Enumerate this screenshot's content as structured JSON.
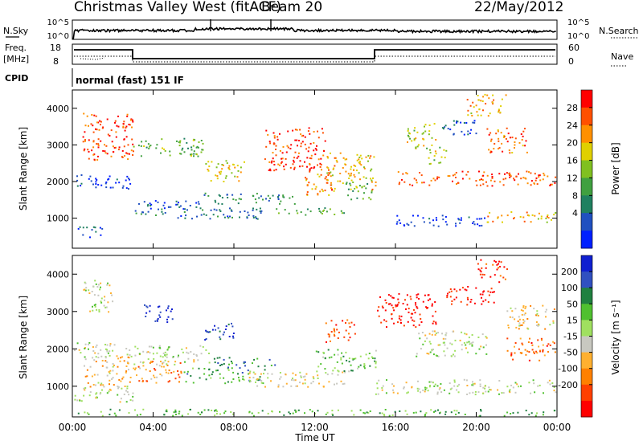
{
  "header": {
    "title": "Christmas Valley West (fitACF)",
    "beam": "Beam 20",
    "date": "22/May/2012"
  },
  "top_panels": {
    "nsky_label": "N.Sky",
    "nsky_ticks": [
      "10^5",
      "10^0"
    ],
    "nsearch_label": "N.Search",
    "nsearch_ticks": [
      "10^5",
      "10^0"
    ],
    "freq_label_1": "Freq.",
    "freq_label_2": "[MHz]",
    "freq_ticks": [
      "18",
      "8"
    ],
    "nave_label": "Nave",
    "nave_ticks": [
      "60",
      "0"
    ],
    "cpid_label": "CPID",
    "cpid_value": "normal (fast) 151 IF"
  },
  "chart_data": [
    {
      "type": "heatmap",
      "name": "power",
      "ylabel": "Slant Range [km]",
      "y_ticks": [
        "4000",
        "3000",
        "2000",
        "1000"
      ],
      "ylim": [
        180,
        4500
      ],
      "colorbar_label": "Power [dB]",
      "colorbar_ticks": [
        "28",
        "24",
        "20",
        "16",
        "12",
        "8",
        "4"
      ],
      "colorbar_colors": [
        "#ff0000",
        "#ff5000",
        "#ff9000",
        "#e0d000",
        "#80c020",
        "#40a040",
        "#208060",
        "#2050c0",
        "#0020ff"
      ],
      "features": [
        {
          "t0": 0.2,
          "t1": 3.0,
          "r0": 1800,
          "r1": 2200,
          "level": 0.88
        },
        {
          "t0": 0.2,
          "t1": 1.5,
          "r0": 500,
          "r1": 800,
          "level": 0.85
        },
        {
          "t0": 3.0,
          "t1": 6.5,
          "r0": 1100,
          "r1": 1500,
          "level": 0.78
        },
        {
          "t0": 5.0,
          "t1": 9.5,
          "r0": 1000,
          "r1": 1300,
          "level": 0.8
        },
        {
          "t0": 6.5,
          "t1": 11.0,
          "r0": 1400,
          "r1": 1700,
          "level": 0.7
        },
        {
          "t0": 10.0,
          "t1": 13.5,
          "r0": 1100,
          "r1": 1300,
          "level": 0.62
        },
        {
          "t0": 13.5,
          "t1": 14.8,
          "r0": 1500,
          "r1": 2000,
          "level": 0.6
        },
        {
          "t0": 16.0,
          "t1": 20.5,
          "r0": 800,
          "r1": 1100,
          "level": 0.9
        },
        {
          "t0": 20.5,
          "t1": 24.0,
          "r0": 900,
          "r1": 1200,
          "level": 0.35
        },
        {
          "t0": 16.0,
          "t1": 24.0,
          "r0": 1900,
          "r1": 2300,
          "level": 0.18
        },
        {
          "t0": 0.5,
          "t1": 3.0,
          "r0": 2600,
          "r1": 3900,
          "level": 0.15
        },
        {
          "t0": 3.0,
          "t1": 6.5,
          "r0": 2700,
          "r1": 3200,
          "level": 0.55
        },
        {
          "t0": 6.5,
          "t1": 8.5,
          "r0": 2000,
          "r1": 2600,
          "level": 0.4
        },
        {
          "t0": 9.5,
          "t1": 12.5,
          "r0": 2300,
          "r1": 3500,
          "level": 0.12
        },
        {
          "t0": 12.5,
          "t1": 15.0,
          "r0": 1800,
          "r1": 2800,
          "level": 0.35
        },
        {
          "t0": 16.5,
          "t1": 18.0,
          "r0": 2900,
          "r1": 3600,
          "level": 0.45
        },
        {
          "t0": 18.0,
          "t1": 20.0,
          "r0": 3300,
          "r1": 3700,
          "level": 0.82
        },
        {
          "t0": 20.5,
          "t1": 22.5,
          "r0": 2800,
          "r1": 3500,
          "level": 0.2
        },
        {
          "t0": 19.5,
          "t1": 21.5,
          "r0": 3800,
          "r1": 4400,
          "level": 0.3
        },
        {
          "t0": 17.5,
          "t1": 18.5,
          "r0": 2500,
          "r1": 3000,
          "level": 0.45
        },
        {
          "t0": 11.5,
          "t1": 13.0,
          "r0": 1600,
          "r1": 2400,
          "level": 0.25
        }
      ]
    },
    {
      "type": "heatmap",
      "name": "velocity",
      "ylabel": "Slant Range [km]",
      "y_ticks": [
        "4000",
        "3000",
        "2000",
        "1000"
      ],
      "ylim": [
        180,
        4500
      ],
      "colorbar_label": "Velocity [m s⁻¹]",
      "colorbar_ticks": [
        "200",
        "100",
        "50",
        "15",
        "-15",
        "-50",
        "-100",
        "-200"
      ],
      "colorbar_colors": [
        "#1020d0",
        "#3050c0",
        "#208040",
        "#50c030",
        "#a0e060",
        "#c8c8c0",
        "#ffb030",
        "#ff8000",
        "#ff4000",
        "#ff0000"
      ],
      "features": [
        {
          "t0": 0.0,
          "t1": 3.0,
          "r0": 1800,
          "r1": 2200,
          "level": 0.5
        },
        {
          "t0": 0.0,
          "t1": 3.0,
          "r0": 600,
          "r1": 1000,
          "level": 0.5
        },
        {
          "t0": 0.5,
          "t1": 3.0,
          "r0": 1000,
          "r1": 1800,
          "level": 0.62
        },
        {
          "t0": 3.0,
          "t1": 5.5,
          "r0": 1100,
          "r1": 1700,
          "level": 0.72
        },
        {
          "t0": 3.0,
          "t1": 7.0,
          "r0": 1600,
          "r1": 2100,
          "level": 0.5
        },
        {
          "t0": 5.5,
          "t1": 9.5,
          "r0": 1100,
          "r1": 1500,
          "level": 0.3
        },
        {
          "t0": 7.0,
          "t1": 10.0,
          "r0": 1500,
          "r1": 1800,
          "level": 0.25
        },
        {
          "t0": 8.5,
          "t1": 13.5,
          "r0": 1000,
          "r1": 1400,
          "level": 0.55
        },
        {
          "t0": 12.0,
          "t1": 15.0,
          "r0": 1400,
          "r1": 2000,
          "level": 0.38
        },
        {
          "t0": 15.0,
          "t1": 24.0,
          "r0": 800,
          "r1": 1200,
          "level": 0.5
        },
        {
          "t0": 17.0,
          "t1": 20.5,
          "r0": 1800,
          "r1": 2500,
          "level": 0.5
        },
        {
          "t0": 3.5,
          "t1": 5.0,
          "r0": 2700,
          "r1": 3200,
          "level": 0.05
        },
        {
          "t0": 6.5,
          "t1": 8.0,
          "r0": 2200,
          "r1": 2700,
          "level": 0.1
        },
        {
          "t0": 15.0,
          "t1": 18.0,
          "r0": 2600,
          "r1": 3500,
          "level": 0.95
        },
        {
          "t0": 18.5,
          "t1": 21.0,
          "r0": 3200,
          "r1": 3700,
          "level": 0.95
        },
        {
          "t0": 20.0,
          "t1": 21.5,
          "r0": 3800,
          "r1": 4400,
          "level": 0.92
        },
        {
          "t0": 21.5,
          "t1": 24.0,
          "r0": 2500,
          "r1": 3200,
          "level": 0.6
        },
        {
          "t0": 21.5,
          "t1": 24.0,
          "r0": 1700,
          "r1": 2300,
          "level": 0.8
        },
        {
          "t0": 0.5,
          "t1": 2.0,
          "r0": 3000,
          "r1": 3900,
          "level": 0.5
        },
        {
          "t0": 12.5,
          "t1": 14.0,
          "r0": 2200,
          "r1": 2800,
          "level": 0.85
        },
        {
          "t0": 0.0,
          "t1": 24.0,
          "r0": 200,
          "r1": 400,
          "level": 0.35
        }
      ]
    }
  ],
  "x_axis": {
    "label": "Time UT",
    "ticks": [
      "00:00",
      "04:00",
      "08:00",
      "12:00",
      "16:00",
      "20:00",
      "00:00"
    ],
    "xlim": [
      0,
      24
    ]
  }
}
